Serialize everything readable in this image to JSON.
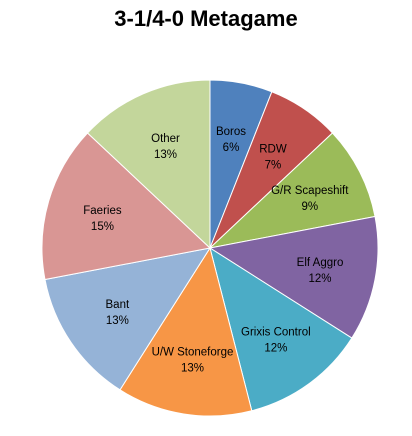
{
  "chart_data": {
    "type": "pie",
    "title": "3-1/4-0 Metagame",
    "slices": [
      {
        "label": "Boros",
        "value": 6,
        "value_label": "6%",
        "color": "#4f81bd"
      },
      {
        "label": "RDW",
        "value": 7,
        "value_label": "7%",
        "color": "#c0504d"
      },
      {
        "label": "G/R Scapeshift",
        "value": 9,
        "value_label": "9%",
        "color": "#9bbb59"
      },
      {
        "label": "Elf Aggro",
        "value": 12,
        "value_label": "12%",
        "color": "#8064a2"
      },
      {
        "label": "Grixis Control",
        "value": 12,
        "value_label": "12%",
        "color": "#4bacc6"
      },
      {
        "label": "U/W Stoneforge",
        "value": 13,
        "value_label": "13%",
        "color": "#f79646"
      },
      {
        "label": "Bant",
        "value": 13,
        "value_label": "13%",
        "color": "#95b3d7"
      },
      {
        "label": "Faeries",
        "value": 15,
        "value_label": "15%",
        "color": "#d99694"
      },
      {
        "label": "Other",
        "value": 13,
        "value_label": "13%",
        "color": "#c3d69b"
      }
    ],
    "start_angle": "12 o'clock",
    "direction": "clockwise",
    "legend": "none"
  }
}
